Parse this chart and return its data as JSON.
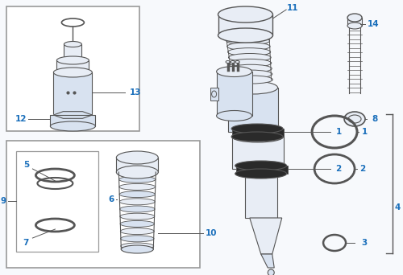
{
  "bg_color": "#f7f9fc",
  "line_color": "#555555",
  "label_color": "#1a6fbb",
  "box_bg": "#ffffff",
  "box_border": "#999999",
  "part_fill": "#e8edf5",
  "part_fill2": "#d8e2f0",
  "dark_band": "#2a2a2a",
  "figsize": [
    5.0,
    3.42
  ],
  "dpi": 100
}
